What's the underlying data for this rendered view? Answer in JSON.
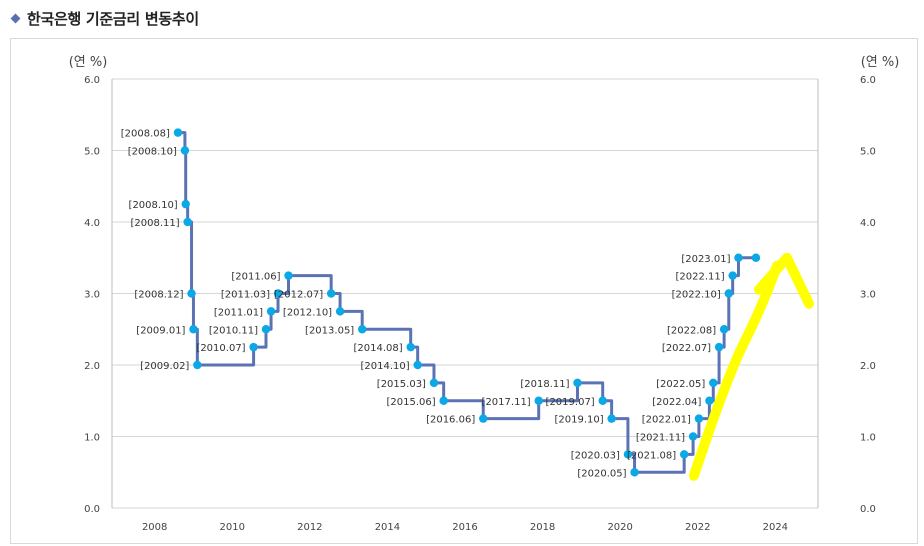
{
  "header": {
    "title": "한국은행 기준금리 변동추이"
  },
  "colors": {
    "line": "#5b73b5",
    "point": "#0aa8e6",
    "grid": "#d6d6d6",
    "highlight": "#ffff00"
  },
  "chart_data": {
    "type": "line",
    "title": "한국은행 기준금리 변동추이",
    "ylabel_left": "(연 %)",
    "ylabel_right": "(연 %)",
    "ylim": [
      0,
      6
    ],
    "yticks": [
      "0.0",
      "1.0",
      "2.0",
      "3.0",
      "4.0",
      "5.0",
      "6.0"
    ],
    "xlim": [
      2006.9,
      2025.1
    ],
    "xticks": [
      "2008",
      "2010",
      "2012",
      "2014",
      "2016",
      "2018",
      "2020",
      "2022",
      "2024"
    ],
    "step": true,
    "points": [
      {
        "label": "[2008.08]",
        "x": 2008.6,
        "y": 5.25
      },
      {
        "label": "[2008.10]",
        "x": 2008.78,
        "y": 5.0
      },
      {
        "label": "[2008.10]",
        "x": 2008.8,
        "y": 4.25
      },
      {
        "label": "[2008.11]",
        "x": 2008.85,
        "y": 4.0
      },
      {
        "label": "[2008.12]",
        "x": 2008.95,
        "y": 3.0
      },
      {
        "label": "[2009.01]",
        "x": 2009.0,
        "y": 2.5
      },
      {
        "label": "[2009.02]",
        "x": 2009.1,
        "y": 2.0
      },
      {
        "label": "[2010.07]",
        "x": 2010.55,
        "y": 2.25
      },
      {
        "label": "[2010.11]",
        "x": 2010.87,
        "y": 2.5
      },
      {
        "label": "[2011.01]",
        "x": 2011.0,
        "y": 2.75
      },
      {
        "label": "[2011.03]",
        "x": 2011.18,
        "y": 3.0
      },
      {
        "label": "[2011.06]",
        "x": 2011.45,
        "y": 3.25
      },
      {
        "label": "[2012.07]",
        "x": 2012.55,
        "y": 3.0
      },
      {
        "label": "[2012.10]",
        "x": 2012.78,
        "y": 2.75
      },
      {
        "label": "[2013.05]",
        "x": 2013.35,
        "y": 2.5
      },
      {
        "label": "[2014.08]",
        "x": 2014.6,
        "y": 2.25
      },
      {
        "label": "[2014.10]",
        "x": 2014.78,
        "y": 2.0
      },
      {
        "label": "[2015.03]",
        "x": 2015.2,
        "y": 1.75
      },
      {
        "label": "[2015.06]",
        "x": 2015.45,
        "y": 1.5
      },
      {
        "label": "[2016.06]",
        "x": 2016.47,
        "y": 1.25
      },
      {
        "label": "[2017.11]",
        "x": 2017.9,
        "y": 1.5
      },
      {
        "label": "[2018.11]",
        "x": 2018.9,
        "y": 1.75
      },
      {
        "label": "[2019.07]",
        "x": 2019.55,
        "y": 1.5
      },
      {
        "label": "[2019.10]",
        "x": 2019.78,
        "y": 1.25
      },
      {
        "label": "[2020.03]",
        "x": 2020.2,
        "y": 0.75
      },
      {
        "label": "[2020.05]",
        "x": 2020.37,
        "y": 0.5
      },
      {
        "label": "[2021.08]",
        "x": 2021.65,
        "y": 0.75
      },
      {
        "label": "[2021.11]",
        "x": 2021.88,
        "y": 1.0
      },
      {
        "label": "[2022.01]",
        "x": 2022.03,
        "y": 1.25
      },
      {
        "label": "[2022.04]",
        "x": 2022.3,
        "y": 1.5
      },
      {
        "label": "[2022.05]",
        "x": 2022.4,
        "y": 1.75
      },
      {
        "label": "[2022.07]",
        "x": 2022.55,
        "y": 2.25
      },
      {
        "label": "[2022.08]",
        "x": 2022.68,
        "y": 2.5
      },
      {
        "label": "[2022.10]",
        "x": 2022.8,
        "y": 3.0
      },
      {
        "label": "[2022.11]",
        "x": 2022.9,
        "y": 3.25
      },
      {
        "label": "[2023.01]",
        "x": 2023.05,
        "y": 3.5
      },
      {
        "label": "",
        "x": 2023.5,
        "y": 3.5
      }
    ],
    "annotation": {
      "type": "hand-drawn-arrow",
      "from": {
        "x": 2021.9,
        "y": 0.45
      },
      "to": {
        "x": 2024.3,
        "y": 3.5
      }
    }
  }
}
